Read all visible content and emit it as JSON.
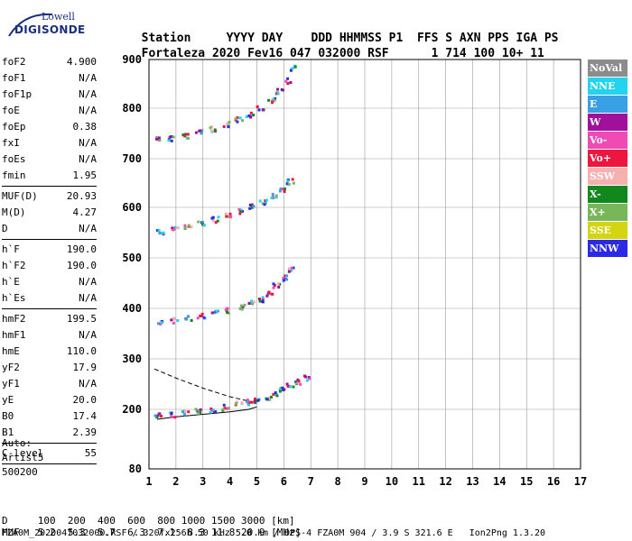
{
  "logo": {
    "top": "Lowell",
    "bottom": "DIGISONDE"
  },
  "header": {
    "labels": [
      "Station",
      "YYYY",
      "DAY",
      "DDD",
      "HHMMSS",
      "P1",
      "FFS",
      "S",
      "AXN",
      "PPS",
      "IGA",
      "PS"
    ],
    "values": [
      "Fortaleza",
      "2020",
      "Fev16",
      "047",
      "032000",
      "RSF",
      "1",
      "714",
      "100",
      "10+",
      "11"
    ]
  },
  "params": {
    "group1": [
      {
        "name": "foF2",
        "value": "4.900"
      },
      {
        "name": "foF1",
        "value": "N/A"
      },
      {
        "name": "foF1p",
        "value": "N/A"
      },
      {
        "name": "foE",
        "value": "N/A"
      },
      {
        "name": "foEp",
        "value": "0.38"
      },
      {
        "name": "fxI",
        "value": "N/A"
      },
      {
        "name": "foEs",
        "value": "N/A"
      },
      {
        "name": "fmin",
        "value": "1.95"
      }
    ],
    "group2": [
      {
        "name": "MUF(D)",
        "value": "20.93"
      },
      {
        "name": "M(D)",
        "value": "4.27"
      },
      {
        "name": "D",
        "value": "N/A"
      }
    ],
    "group3": [
      {
        "name": "h`F",
        "value": "190.0"
      },
      {
        "name": "h`F2",
        "value": "190.0"
      },
      {
        "name": "h`E",
        "value": "N/A"
      },
      {
        "name": "h`Es",
        "value": "N/A"
      }
    ],
    "group4": [
      {
        "name": "hmF2",
        "value": "199.5"
      },
      {
        "name": "hmF1",
        "value": "N/A"
      },
      {
        "name": "hmE",
        "value": "110.0"
      },
      {
        "name": "yF2",
        "value": "17.9"
      },
      {
        "name": "yF1",
        "value": "N/A"
      },
      {
        "name": "yE",
        "value": "20.0"
      },
      {
        "name": "B0",
        "value": "17.4"
      },
      {
        "name": "B1",
        "value": "2.39"
      }
    ],
    "group5": [
      {
        "name": "C-level",
        "value": "55"
      }
    ]
  },
  "auto": {
    "l1": "Auto:",
    "l2": "Artist5",
    "l3": "500200"
  },
  "legend": [
    {
      "label": "NoVal",
      "color": "#8c8c8c"
    },
    {
      "label": "NNE",
      "color": "#22d4f0"
    },
    {
      "label": "E",
      "color": "#3aa0e6"
    },
    {
      "label": "W",
      "color": "#a0109a"
    },
    {
      "label": "Vo-",
      "color": "#f04ab4"
    },
    {
      "label": "Vo+",
      "color": "#ec1640"
    },
    {
      "label": "SSW",
      "color": "#f5b0b0"
    },
    {
      "label": "X-",
      "color": "#10881e"
    },
    {
      "label": "X+",
      "color": "#78b65a"
    },
    {
      "label": "SSE",
      "color": "#d4d410"
    },
    {
      "label": "NNW",
      "color": "#2a2ae6"
    }
  ],
  "muf_table": {
    "d_label": "D",
    "d_values": [
      "100",
      "200",
      "400",
      "600",
      "800",
      "1000",
      "1500",
      "3000"
    ],
    "d_unit": "[km]",
    "muf_label": "MUF",
    "muf_values": [
      "5.2",
      "5.3",
      "5.7",
      "6.3",
      "7.1",
      "8.3",
      "11.8",
      "20.9"
    ],
    "muf_unit": "[MHz]"
  },
  "footer": "FZA0M_2020047032000.RSF / 320fx256h 50 kHz 5.0 km / DPS-4 FZA0M 904 / 3.9 S 321.6 E   Ion2Png 1.3.20",
  "chart_data": {
    "type": "scatter",
    "xlim": [
      1,
      17
    ],
    "ylim": [
      80,
      900
    ],
    "x_ticks": [
      "1",
      "2",
      "3",
      "4",
      "5",
      "6",
      "7",
      "8",
      "9",
      "10",
      "11",
      "12",
      "13",
      "14",
      "15",
      "16",
      "17"
    ],
    "y_ticks": [
      "80",
      "200",
      "300",
      "400",
      "500",
      "600",
      "700",
      "800",
      "900"
    ],
    "y_tick_values": [
      80,
      200,
      300,
      400,
      500,
      600,
      700,
      800,
      900
    ],
    "grid": true,
    "legend_position": "right",
    "traces": [
      {
        "name": "first hop",
        "x": [
          1.3,
          1.8,
          2.3,
          2.8,
          3.3,
          3.8,
          4.3,
          4.7,
          5.0,
          5.3,
          5.6,
          5.9,
          6.2,
          6.5,
          6.8
        ],
        "y": [
          190,
          192,
          195,
          198,
          202,
          206,
          212,
          216,
          220,
          226,
          232,
          240,
          248,
          256,
          265
        ]
      },
      {
        "name": "second hop",
        "x": [
          1.4,
          1.9,
          2.4,
          2.9,
          3.4,
          3.9,
          4.4,
          4.8,
          5.1,
          5.4,
          5.7,
          6.0,
          6.2
        ],
        "y": [
          375,
          378,
          382,
          387,
          392,
          398,
          405,
          412,
          420,
          432,
          446,
          462,
          480
        ]
      },
      {
        "name": "third hop",
        "x": [
          1.4,
          1.9,
          2.4,
          2.9,
          3.4,
          3.9,
          4.4,
          4.8,
          5.2,
          5.6,
          5.9,
          6.2
        ],
        "y": [
          555,
          558,
          563,
          570,
          578,
          586,
          595,
          604,
          614,
          626,
          640,
          655
        ]
      },
      {
        "name": "fourth hop",
        "x": [
          1.3,
          1.8,
          2.3,
          2.8,
          3.3,
          3.8,
          4.3,
          4.7,
          5.1,
          5.5,
          5.8,
          6.1,
          6.3
        ],
        "y": [
          740,
          743,
          748,
          754,
          761,
          770,
          780,
          790,
          802,
          818,
          836,
          858,
          885
        ]
      }
    ],
    "profile_solid": {
      "x": [
        1.3,
        2.0,
        3.0,
        4.0,
        4.7,
        5.0
      ],
      "y": [
        180,
        185,
        190,
        195,
        200,
        205
      ]
    },
    "profile_dashed": {
      "x": [
        1.2,
        2.0,
        3.0,
        4.0,
        4.8
      ],
      "y": [
        280,
        262,
        242,
        225,
        215
      ]
    }
  }
}
